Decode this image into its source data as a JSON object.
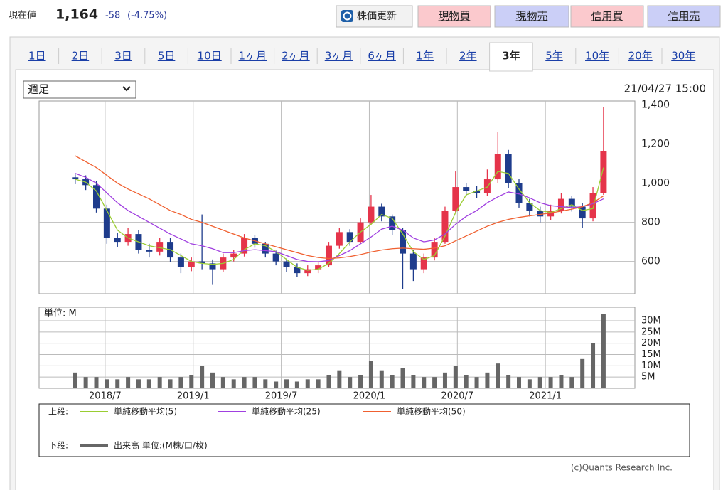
{
  "header": {
    "label": "現在値",
    "price": "1,164",
    "change": "-58",
    "change_pct": "(-4.75%)"
  },
  "buttons": [
    {
      "label": "株価更新",
      "color": "#f2f2f2"
    },
    {
      "label": "現物買",
      "color": "#fbc9cd"
    },
    {
      "label": "現物売",
      "color": "#cbcff7"
    },
    {
      "label": "信用買",
      "color": "#fbc9cd"
    },
    {
      "label": "信用売",
      "color": "#cbcff7"
    }
  ],
  "tabs": [
    {
      "label": "1日"
    },
    {
      "label": "2日"
    },
    {
      "label": "3日"
    },
    {
      "label": "5日"
    },
    {
      "label": "10日"
    },
    {
      "label": "1ヶ月"
    },
    {
      "label": "2ヶ月"
    },
    {
      "label": "3ヶ月"
    },
    {
      "label": "6ヶ月"
    },
    {
      "label": "1年"
    },
    {
      "label": "2年"
    },
    {
      "label": "3年",
      "active": true
    },
    {
      "label": "5年"
    },
    {
      "label": "10年"
    },
    {
      "label": "20年"
    },
    {
      "label": "30年"
    }
  ],
  "select": "週足",
  "credit": "(c)Quants Research Inc.",
  "chart_data": [
    {
      "type": "candlestick",
      "timestamp": "21/04/27 15:00",
      "legend_title": "上段:",
      "color_up": "#e5344a",
      "color_down": "#1e3c8c",
      "grid": true,
      "x": [
        2018.33,
        2018.39,
        2018.45,
        2018.51,
        2018.57,
        2018.63,
        2018.69,
        2018.75,
        2018.81,
        2018.87,
        2018.93,
        2018.99,
        2019.05,
        2019.11,
        2019.17,
        2019.23,
        2019.29,
        2019.35,
        2019.41,
        2019.47,
        2019.53,
        2019.59,
        2019.65,
        2019.71,
        2019.77,
        2019.83,
        2019.89,
        2019.95,
        2020.01,
        2020.07,
        2020.13,
        2020.19,
        2020.25,
        2020.31,
        2020.37,
        2020.43,
        2020.49,
        2020.55,
        2020.61,
        2020.67,
        2020.73,
        2020.79,
        2020.85,
        2020.91,
        2020.97,
        2021.03,
        2021.09,
        2021.15,
        2021.21,
        2021.27,
        2021.33
      ],
      "open": [
        1030,
        1020,
        990,
        870,
        720,
        700,
        740,
        660,
        650,
        700,
        620,
        570,
        600,
        590,
        560,
        620,
        640,
        720,
        690,
        640,
        600,
        570,
        540,
        560,
        580,
        680,
        750,
        700,
        800,
        880,
        830,
        760,
        640,
        560,
        620,
        700,
        860,
        980,
        960,
        950,
        1020,
        1150,
        1000,
        900,
        860,
        830,
        860,
        920,
        880,
        820,
        950
      ],
      "high": [
        1045,
        1040,
        1010,
        890,
        745,
        770,
        760,
        690,
        720,
        720,
        640,
        620,
        840,
        610,
        640,
        660,
        740,
        735,
        700,
        655,
        615,
        590,
        580,
        600,
        700,
        770,
        765,
        820,
        940,
        895,
        840,
        770,
        660,
        640,
        720,
        880,
        1060,
        1000,
        985,
        1070,
        1260,
        1170,
        1020,
        920,
        880,
        890,
        950,
        935,
        900,
        980,
        1390
      ],
      "low": [
        995,
        965,
        850,
        690,
        675,
        680,
        640,
        620,
        630,
        595,
        540,
        550,
        560,
        480,
        545,
        600,
        625,
        670,
        620,
        580,
        545,
        520,
        525,
        540,
        570,
        665,
        680,
        690,
        785,
        805,
        735,
        460,
        500,
        540,
        605,
        690,
        850,
        935,
        925,
        935,
        1000,
        975,
        875,
        830,
        800,
        810,
        845,
        855,
        770,
        805,
        940
      ],
      "close": [
        1020,
        990,
        870,
        720,
        700,
        740,
        660,
        650,
        700,
        620,
        570,
        600,
        590,
        560,
        620,
        640,
        720,
        690,
        640,
        600,
        570,
        540,
        560,
        580,
        680,
        750,
        700,
        800,
        880,
        830,
        760,
        640,
        560,
        620,
        700,
        860,
        980,
        960,
        950,
        1020,
        1150,
        1000,
        900,
        860,
        830,
        860,
        920,
        880,
        820,
        950,
        1164
      ],
      "series": [
        {
          "name": "単純移動平均(5)",
          "color": "#9acd32",
          "values": [
            1020,
            1005,
            960,
            860,
            760,
            720,
            700,
            680,
            670,
            660,
            630,
            600,
            590,
            585,
            590,
            610,
            660,
            690,
            680,
            650,
            610,
            570,
            555,
            560,
            590,
            640,
            700,
            750,
            790,
            840,
            820,
            740,
            650,
            610,
            630,
            730,
            850,
            940,
            960,
            980,
            1060,
            1050,
            970,
            900,
            860,
            850,
            870,
            890,
            860,
            870,
            1080
          ]
        },
        {
          "name": "単純移動平均(25)",
          "color": "#a040e0",
          "values": [
            1050,
            1030,
            1000,
            950,
            900,
            860,
            830,
            800,
            770,
            740,
            715,
            690,
            680,
            665,
            645,
            645,
            655,
            660,
            655,
            650,
            630,
            610,
            600,
            598,
            605,
            630,
            655,
            690,
            725,
            765,
            780,
            760,
            720,
            700,
            710,
            740,
            790,
            830,
            860,
            900,
            930,
            955,
            945,
            925,
            900,
            885,
            880,
            875,
            880,
            895,
            920
          ]
        },
        {
          "name": "単純移動平均(50)",
          "color": "#f06030",
          "values": [
            1140,
            1110,
            1080,
            1040,
            1000,
            970,
            945,
            920,
            890,
            860,
            840,
            815,
            800,
            780,
            760,
            740,
            720,
            705,
            690,
            675,
            660,
            645,
            630,
            620,
            615,
            618,
            625,
            635,
            648,
            658,
            665,
            668,
            665,
            662,
            668,
            680,
            705,
            730,
            755,
            780,
            800,
            815,
            825,
            833,
            840,
            848,
            857,
            867,
            880,
            900,
            935
          ]
        }
      ],
      "xlim": [
        2018.125,
        2021.508
      ],
      "xticks": [
        2018.5,
        2019.0,
        2019.5,
        2020.0,
        2020.5,
        2021.0
      ],
      "ylim": [
        435,
        1420
      ],
      "yticks": [
        {
          "value": 600,
          "label": "600"
        },
        {
          "value": 800,
          "label": "800"
        },
        {
          "value": 1000,
          "label": "1,000"
        },
        {
          "value": 1200,
          "label": "1,200"
        },
        {
          "value": 1400,
          "label": "1,400"
        }
      ]
    },
    {
      "type": "bar",
      "y_label": "単位: M",
      "legend_title": "下段:",
      "color": "#666666",
      "grid": true,
      "x": [
        2018.33,
        2018.39,
        2018.45,
        2018.51,
        2018.57,
        2018.63,
        2018.69,
        2018.75,
        2018.81,
        2018.87,
        2018.93,
        2018.99,
        2019.05,
        2019.11,
        2019.17,
        2019.23,
        2019.29,
        2019.35,
        2019.41,
        2019.47,
        2019.53,
        2019.59,
        2019.65,
        2019.71,
        2019.77,
        2019.83,
        2019.89,
        2019.95,
        2020.01,
        2020.07,
        2020.13,
        2020.19,
        2020.25,
        2020.31,
        2020.37,
        2020.43,
        2020.49,
        2020.55,
        2020.61,
        2020.67,
        2020.73,
        2020.79,
        2020.85,
        2020.91,
        2020.97,
        2021.03,
        2021.09,
        2021.15,
        2021.21,
        2021.27,
        2021.33
      ],
      "series": [
        {
          "name": "出来高 単位:(M株/口/枚)",
          "color": "#666666",
          "values": [
            7,
            5,
            5,
            4,
            4,
            5,
            4,
            4,
            5,
            4,
            5,
            6,
            10,
            7,
            5,
            4,
            5,
            5,
            4,
            3,
            4,
            3,
            4,
            4,
            6,
            8,
            5,
            6,
            12,
            8,
            6,
            9,
            6,
            5,
            5,
            7,
            10,
            6,
            5,
            7,
            11,
            6,
            5,
            4,
            5,
            5,
            6,
            5,
            13,
            20,
            33
          ]
        }
      ],
      "xlim": [
        2018.125,
        2021.508
      ],
      "xticks": [
        {
          "value": 2018.5,
          "label": "2018/7"
        },
        {
          "value": 2019.0,
          "label": "2019/1"
        },
        {
          "value": 2019.5,
          "label": "2019/7"
        },
        {
          "value": 2020.0,
          "label": "2020/1"
        },
        {
          "value": 2020.5,
          "label": "2020/7"
        },
        {
          "value": 2021.0,
          "label": "2021/1"
        }
      ],
      "ylim": [
        0,
        36
      ],
      "yticks": [
        {
          "value": 5,
          "label": "5M"
        },
        {
          "value": 10,
          "label": "10M"
        },
        {
          "value": 15,
          "label": "15M"
        },
        {
          "value": 20,
          "label": "20M"
        },
        {
          "value": 25,
          "label": "25M"
        },
        {
          "value": 30,
          "label": "30M"
        }
      ]
    }
  ]
}
